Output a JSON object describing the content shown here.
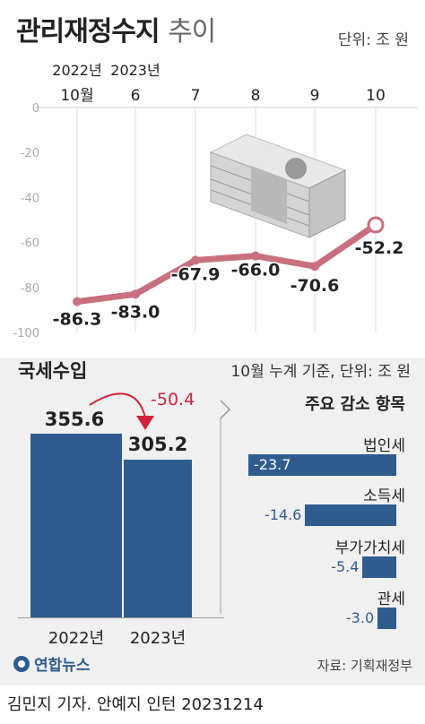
{
  "header": {
    "title_main": "관리재정수지",
    "title_sub": "추이",
    "unit": "단위: 조 원"
  },
  "line_chart": {
    "year_labels": [
      "2022년",
      "2023년"
    ],
    "x_labels": [
      "10월",
      "6",
      "7",
      "8",
      "9",
      "10"
    ],
    "y_ticks": [
      "0",
      "-20",
      "-40",
      "-60",
      "-80",
      "-100"
    ],
    "value_labels": [
      "-86.3",
      "-83.0",
      "-67.9",
      "-66.0",
      "-70.6",
      "-52.2"
    ],
    "line_color": "#c9707e",
    "illustration": "money-stack-icon"
  },
  "tax": {
    "title": "국세수입",
    "unit": "10월 누계 기준, 단위: 조 원",
    "values": [
      "355.6",
      "305.2"
    ],
    "years": [
      "2022년",
      "2023년"
    ],
    "diff": "-50.4",
    "bar_color": "#2f5c8f",
    "diff_color": "#d1233b"
  },
  "decrease": {
    "title": "주요 감소 항목",
    "items": [
      {
        "name": "법인세",
        "value": "-23.7"
      },
      {
        "name": "소득세",
        "value": "-14.6"
      },
      {
        "name": "부가가치세",
        "value": "-5.4"
      },
      {
        "name": "관세",
        "value": "-3.0"
      }
    ]
  },
  "footer": {
    "logo": "연합뉴스",
    "source": "자료: 기획재정부",
    "credit": "김민지 기자. 안예지 인턴  20231214"
  },
  "chart_data": [
    {
      "type": "line",
      "title": "관리재정수지 추이",
      "unit": "조 원",
      "x": [
        "2022-10",
        "2023-06",
        "2023-07",
        "2023-08",
        "2023-09",
        "2023-10"
      ],
      "values": [
        -86.3,
        -83.0,
        -67.9,
        -66.0,
        -70.6,
        -52.2
      ],
      "ylim": [
        -100,
        0
      ],
      "yticks": [
        0,
        -20,
        -40,
        -60,
        -80,
        -100
      ],
      "grid": "vertical"
    },
    {
      "type": "bar",
      "title": "국세수입",
      "categories": [
        "2022년",
        "2023년"
      ],
      "values": [
        355.6,
        305.2
      ],
      "annotation": "-50.4"
    },
    {
      "type": "bar",
      "orientation": "horizontal",
      "title": "주요 감소 항목",
      "categories": [
        "법인세",
        "소득세",
        "부가가치세",
        "관세"
      ],
      "values": [
        -23.7,
        -14.6,
        -5.4,
        -3.0
      ]
    }
  ]
}
